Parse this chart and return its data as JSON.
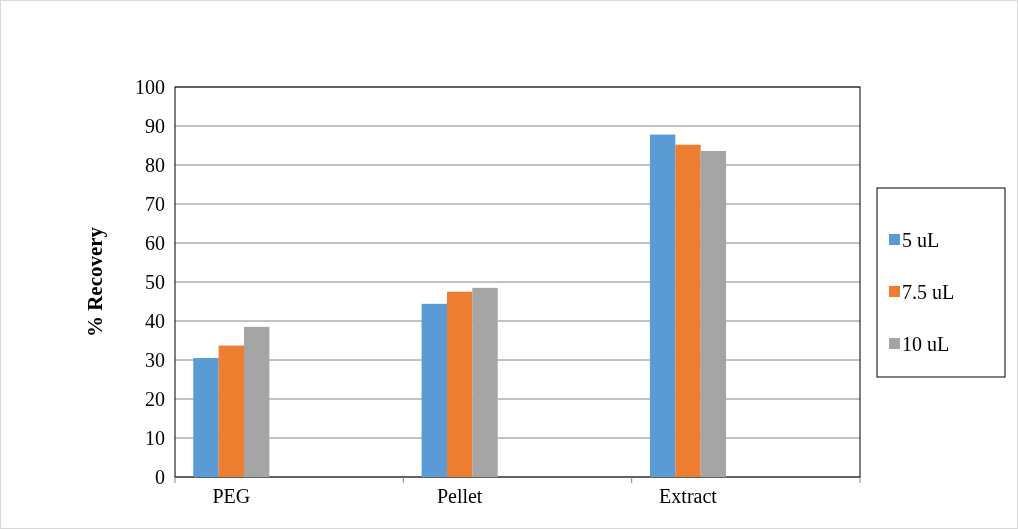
{
  "chart_data": {
    "type": "bar",
    "ylabel": "% Recovery",
    "categories": [
      "PEG",
      "Pellet",
      "Extract"
    ],
    "series": [
      {
        "name": "5 uL",
        "color": "#5b9bd5",
        "values": [
          30.5,
          44.4,
          87.8
        ]
      },
      {
        "name": "7.5 uL",
        "color": "#ed7d31",
        "values": [
          33.7,
          47.5,
          85.2
        ]
      },
      {
        "name": "10 uL",
        "color": "#a5a5a5",
        "values": [
          38.5,
          48.5,
          83.6
        ]
      }
    ],
    "ylim": [
      0,
      100
    ],
    "yticks": [
      0,
      10,
      20,
      30,
      40,
      50,
      60,
      70,
      80,
      90,
      100
    ],
    "grid": "y",
    "legend": "right"
  }
}
